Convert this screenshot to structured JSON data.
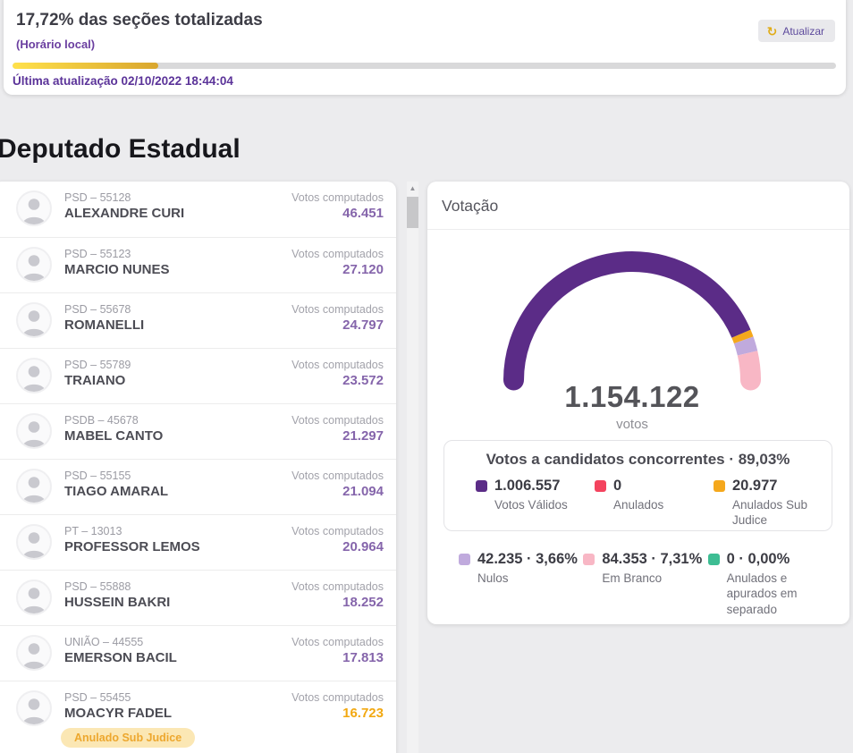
{
  "header": {
    "title": "17,72% das seções totalizadas",
    "subtitle": "(Horário local)",
    "progress_percent": 17.72,
    "last_update": "Última atualização 02/10/2022 18:44:04",
    "refresh_label": "Atualizar",
    "refresh_icon": "↻"
  },
  "page_title": "Deputado Estadual",
  "candidates": {
    "votes_label": "Votos computados",
    "items": [
      {
        "party": "PSD – 55128",
        "name": "ALEXANDRE CURI",
        "votes": "46.451"
      },
      {
        "party": "PSD – 55123",
        "name": "MARCIO NUNES",
        "votes": "27.120"
      },
      {
        "party": "PSD – 55678",
        "name": "ROMANELLI",
        "votes": "24.797"
      },
      {
        "party": "PSD – 55789",
        "name": "TRAIANO",
        "votes": "23.572"
      },
      {
        "party": "PSDB – 45678",
        "name": "MABEL CANTO",
        "votes": "21.297"
      },
      {
        "party": "PSD – 55155",
        "name": "TIAGO AMARAL",
        "votes": "21.094"
      },
      {
        "party": "PT – 13013",
        "name": "PROFESSOR LEMOS",
        "votes": "20.964"
      },
      {
        "party": "PSD – 55888",
        "name": "HUSSEIN BAKRI",
        "votes": "18.252"
      },
      {
        "party": "UNIÃO – 44555",
        "name": "EMERSON BACIL",
        "votes": "17.813"
      },
      {
        "party": "PSD – 55455",
        "name": "MOACYR FADEL",
        "votes": "16.723",
        "badge": "Anulado Sub Judice",
        "highlight": true
      }
    ]
  },
  "votacao": {
    "panel_title": "Votação",
    "total_votes": "1.154.122",
    "total_label": "votos",
    "summary_title": "Votos a candidatos concorrentes · 89,03%",
    "legend_box": [
      {
        "value": "1.006.557",
        "label": "Votos Válidos",
        "color": "#5b2c87"
      },
      {
        "value": "0",
        "label": "Anulados",
        "color": "#f4435e"
      },
      {
        "value": "20.977",
        "label": "Anulados Sub Judice",
        "color": "#f5a81c"
      }
    ],
    "legend_below": [
      {
        "value": "42.235 · 3,66%",
        "label": "Nulos",
        "color": "#c0aadd"
      },
      {
        "value": "84.353 · 7,31%",
        "label": "Em Branco",
        "color": "#f8b7c5"
      },
      {
        "value": "0 · 0,00%",
        "label": "Anulados e apurados em separado",
        "color": "#3dbd93"
      }
    ]
  },
  "chart_data": {
    "type": "pie",
    "subtype": "half-donut-gauge",
    "title": "Votação",
    "total": 1154122,
    "center_value": "1.154.122",
    "center_label": "votos",
    "annotation": "Votos a candidatos concorrentes · 89,03%",
    "segments": [
      {
        "name": "Votos Válidos",
        "value": 1006557,
        "color": "#5b2c87"
      },
      {
        "name": "Anulados",
        "value": 0,
        "color": "#f4435e"
      },
      {
        "name": "Anulados Sub Judice",
        "value": 20977,
        "color": "#f5a81c"
      },
      {
        "name": "Nulos",
        "value": 42235,
        "percent": "3,66%",
        "color": "#c0aadd"
      },
      {
        "name": "Em Branco",
        "value": 84353,
        "percent": "7,31%",
        "color": "#f8b7c5"
      },
      {
        "name": "Anulados e apurados em separado",
        "value": 0,
        "percent": "0,00%",
        "color": "#3dbd93"
      }
    ]
  },
  "colors": {
    "accent_purple": "#6b3fa0",
    "votes_purple": "#8565ab",
    "gold": "#f2a811",
    "progress_from": "#ffe14b",
    "progress_to": "#d9a62e",
    "badge_bg": "#fbe7b4",
    "badge_text": "#eda72e"
  }
}
